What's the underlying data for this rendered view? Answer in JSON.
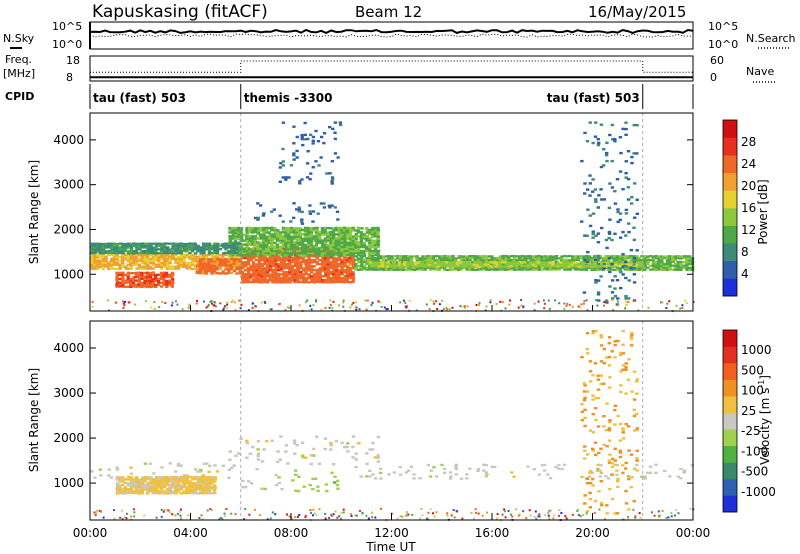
{
  "header": {
    "station": "Kapuskasing (fitACF)",
    "beam": "Beam 12",
    "date": "16/May/2015"
  },
  "noise_panel": {
    "left_label": "N.Sky",
    "left_ticks": [
      "10^5",
      "10^0"
    ],
    "right_ticks": [
      "10^5",
      "10^0"
    ],
    "right_label": "N.Search",
    "sky_level": 0.35,
    "search_level": 0.5
  },
  "freq_panel": {
    "left_label_1": "Freq.",
    "left_label_2": "[MHz]",
    "left_ticks": [
      "18",
      "8"
    ],
    "right_ticks": [
      "60",
      "0"
    ],
    "right_label": "Nave",
    "freq_level": 0.15,
    "nave_level_low": 0.35,
    "nave_level_high": 0.8
  },
  "cpid_panel": {
    "label": "CPID",
    "modes": [
      {
        "name": "tau (fast) 503",
        "start_h": 0,
        "end_h": 6
      },
      {
        "name": "themis -3300",
        "start_h": 6,
        "end_h": 22
      },
      {
        "name": "tau (fast) 503",
        "start_h": 22,
        "end_h": 24
      }
    ]
  },
  "power_panel": {
    "ylabel": "Slant Range [km]",
    "yticks": [
      "1000",
      "2000",
      "3000",
      "4000"
    ],
    "colorbar_label": "Power [dB]",
    "colorbar_ticks": [
      "4",
      "8",
      "12",
      "16",
      "20",
      "24",
      "28"
    ],
    "colors": [
      "#1c2fd8",
      "#2e5fa8",
      "#3e8a78",
      "#4ea848",
      "#8cc83c",
      "#e8d030",
      "#f0a030",
      "#f06828",
      "#e83020",
      "#d01010"
    ]
  },
  "velocity_panel": {
    "ylabel": "Slant Range [km]",
    "yticks": [
      "1000",
      "2000",
      "3000",
      "4000"
    ],
    "colorbar_label": "Velocity [m s",
    "colorbar_sup": "-1",
    "colorbar_close": "]",
    "colorbar_ticks": [
      "1000",
      "500",
      "100",
      "25",
      "-25",
      "-100",
      "-500",
      "-1000"
    ],
    "colors": [
      "#1c2fd8",
      "#2f5fb0",
      "#3a8a6a",
      "#50b040",
      "#a0d050",
      "#c8c8c0",
      "#f0c040",
      "#f09020",
      "#f06020",
      "#e03020",
      "#d01010"
    ]
  },
  "xaxis": {
    "label": "Time UT",
    "ticks": [
      "00:00",
      "04:00",
      "08:00",
      "12:00",
      "16:00",
      "20:00",
      "00:00"
    ]
  },
  "chart_data": {
    "type": "heatmap",
    "title": "Kapuskasing (fitACF)",
    "subtitle": "Beam 12",
    "date": "16/May/2015",
    "x_range_hours": [
      0,
      24
    ],
    "y_range_km": [
      180,
      4600
    ],
    "xlabel": "Time UT",
    "panels": [
      {
        "name": "power",
        "units": "dB",
        "colorbar_range": [
          0,
          32
        ],
        "regions": [
          {
            "t0": 0.0,
            "t1": 6.0,
            "r0": 1100,
            "r1": 1450,
            "value": 20
          },
          {
            "t0": 1.0,
            "t1": 3.3,
            "r0": 700,
            "r1": 1050,
            "value": 26
          },
          {
            "t0": 4.2,
            "t1": 6.0,
            "r0": 1000,
            "r1": 1350,
            "value": 24
          },
          {
            "t0": 6.0,
            "t1": 10.5,
            "r0": 800,
            "r1": 1600,
            "value": 25
          },
          {
            "t0": 5.5,
            "t1": 11.5,
            "r0": 1400,
            "r1": 2050,
            "value": 12
          },
          {
            "t0": 10.5,
            "t1": 24.0,
            "r0": 1080,
            "r1": 1420,
            "value": 12
          },
          {
            "t0": 11.0,
            "t1": 22.0,
            "r0": 1150,
            "r1": 1280,
            "value": 15
          },
          {
            "t0": 0.0,
            "t1": 6.0,
            "r0": 1450,
            "r1": 1700,
            "value": 8
          },
          {
            "t0": 7.5,
            "t1": 10.0,
            "r0": 3000,
            "r1": 4400,
            "value": 4
          },
          {
            "t0": 6.5,
            "t1": 10.0,
            "r0": 2100,
            "r1": 2600,
            "value": 5
          },
          {
            "t0": 19.5,
            "t1": 21.8,
            "r0": 300,
            "r1": 4400,
            "value": 5
          }
        ]
      },
      {
        "name": "velocity",
        "units": "m s-1",
        "colorbar_range": [
          -1000,
          1000
        ],
        "regions": [
          {
            "t0": 0.0,
            "t1": 6.0,
            "r0": 1100,
            "r1": 1450,
            "value": 0
          },
          {
            "t0": 1.0,
            "t1": 5.0,
            "r0": 750,
            "r1": 1150,
            "value": 150
          },
          {
            "t0": 6.0,
            "t1": 8.0,
            "r0": 800,
            "r1": 1500,
            "value": -50
          },
          {
            "t0": 8.0,
            "t1": 10.0,
            "r0": 800,
            "r1": 1300,
            "value": -200
          },
          {
            "t0": 5.5,
            "t1": 11.5,
            "r0": 1400,
            "r1": 2050,
            "value": 0
          },
          {
            "t0": 10.5,
            "t1": 24.0,
            "r0": 1080,
            "r1": 1420,
            "value": 0
          },
          {
            "t0": 19.5,
            "t1": 21.8,
            "r0": 300,
            "r1": 4400,
            "value": 300
          }
        ]
      }
    ]
  }
}
